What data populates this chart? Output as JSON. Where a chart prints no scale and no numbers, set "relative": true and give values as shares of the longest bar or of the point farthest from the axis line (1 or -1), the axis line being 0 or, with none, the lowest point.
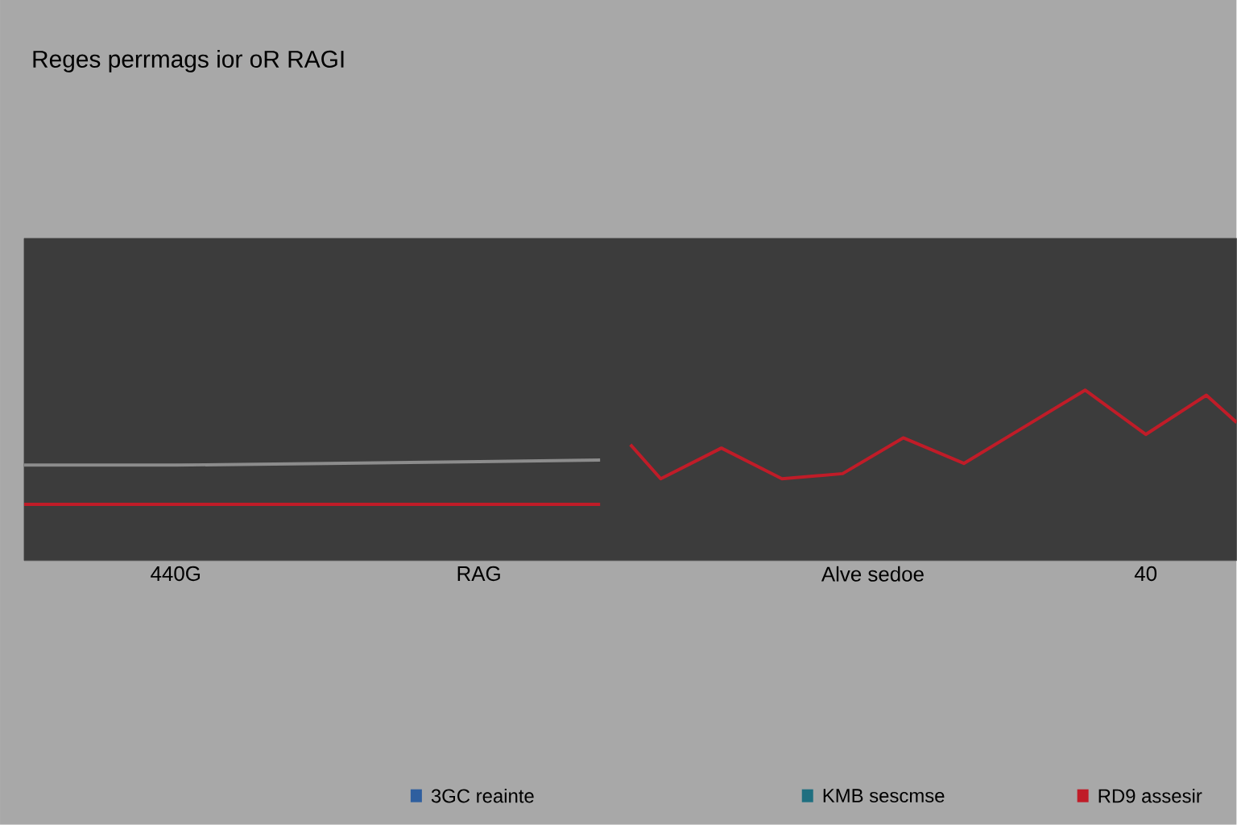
{
  "chart_data": {
    "type": "line",
    "title": "Reges perrmags ior oR RAGI",
    "relative": true,
    "categories": [
      null,
      null,
      null,
      null,
      null,
      "440G",
      null,
      null,
      null,
      null,
      null,
      null,
      null,
      null,
      null,
      "RAG",
      null,
      null,
      null,
      null,
      null,
      null,
      null,
      null,
      null,
      null,
      null,
      null,
      "Alve sedoe",
      null,
      null,
      null,
      null,
      null,
      null,
      null,
      null,
      "40",
      null,
      null,
      null
    ],
    "legend": "bottom",
    "line_style": "solid",
    "series": [
      {
        "color": "#8c8c8c",
        "values": [
          0.56,
          null,
          null,
          null,
          null,
          0.56,
          null,
          null,
          null,
          null,
          0.57,
          null,
          null,
          null,
          null,
          0.58,
          null,
          null,
          null,
          0.59,
          null,
          null,
          null,
          null,
          null,
          null,
          null,
          null,
          null,
          null,
          null,
          null,
          null,
          null,
          null,
          null,
          null,
          null,
          null,
          null,
          null
        ]
      },
      {
        "color": "#c01c28",
        "values": [
          0.33,
          null,
          null,
          null,
          null,
          null,
          null,
          null,
          null,
          null,
          null,
          null,
          null,
          null,
          null,
          null,
          null,
          null,
          null,
          0.33,
          null,
          null,
          null,
          null,
          null,
          null,
          null,
          null,
          null,
          null,
          null,
          null,
          null,
          null,
          null,
          null,
          null,
          null,
          null,
          null,
          null
        ]
      },
      {
        "name": "RD9 assesir",
        "color": "#c01c28",
        "values": [
          null,
          null,
          null,
          null,
          null,
          null,
          null,
          null,
          null,
          null,
          null,
          null,
          null,
          null,
          null,
          null,
          null,
          null,
          null,
          null,
          0.68,
          0.48,
          null,
          0.66,
          null,
          0.48,
          null,
          0.51,
          null,
          0.72,
          null,
          0.57,
          null,
          null,
          null,
          1.0,
          null,
          0.74,
          null,
          0.97,
          0.81
        ]
      },
      {
        "name": "3GC reainte",
        "color": "#2f5f9f",
        "values": [
          null,
          null,
          null,
          null,
          null,
          null,
          null,
          null,
          null,
          null,
          null,
          null,
          null,
          null,
          null,
          null,
          null,
          null,
          null,
          null,
          null,
          null,
          null,
          null,
          null,
          null,
          null,
          null,
          null,
          null,
          null,
          null,
          null,
          null,
          null,
          null,
          null,
          null,
          null,
          null,
          null
        ]
      },
      {
        "name": "KMB sescmse",
        "color": "#1f6f80",
        "values": [
          null,
          null,
          null,
          null,
          null,
          null,
          null,
          null,
          null,
          null,
          null,
          null,
          null,
          null,
          null,
          null,
          null,
          null,
          null,
          null,
          null,
          null,
          null,
          null,
          null,
          null,
          null,
          null,
          null,
          null,
          null,
          null,
          null,
          null,
          null,
          null,
          null,
          null,
          null,
          null,
          null
        ]
      }
    ]
  }
}
